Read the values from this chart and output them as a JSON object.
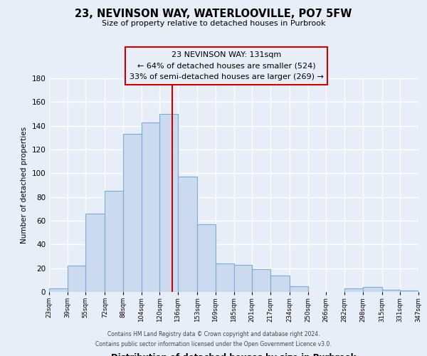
{
  "title": "23, NEVINSON WAY, WATERLOOVILLE, PO7 5FW",
  "subtitle": "Size of property relative to detached houses in Purbrook",
  "xlabel": "Distribution of detached houses by size in Purbrook",
  "ylabel": "Number of detached properties",
  "bin_edges": [
    23,
    39,
    55,
    72,
    88,
    104,
    120,
    136,
    153,
    169,
    185,
    201,
    217,
    234,
    250,
    266,
    282,
    298,
    315,
    331,
    347
  ],
  "bar_heights": [
    3,
    22,
    66,
    85,
    133,
    143,
    150,
    97,
    57,
    24,
    23,
    19,
    14,
    5,
    0,
    0,
    3,
    4,
    2,
    1
  ],
  "bar_color": "#ccdaf0",
  "bar_edge_color": "#7aadd4",
  "property_value": 131,
  "vline_color": "#cc0000",
  "annotation_box_edge_color": "#cc0000",
  "annotation_line1": "23 NEVINSON WAY: 131sqm",
  "annotation_line2": "← 64% of detached houses are smaller (524)",
  "annotation_line3": "33% of semi-detached houses are larger (269) →",
  "ylim": [
    0,
    180
  ],
  "yticks": [
    0,
    20,
    40,
    60,
    80,
    100,
    120,
    140,
    160,
    180
  ],
  "tick_labels": [
    "23sqm",
    "39sqm",
    "55sqm",
    "72sqm",
    "88sqm",
    "104sqm",
    "120sqm",
    "136sqm",
    "153sqm",
    "169sqm",
    "185sqm",
    "201sqm",
    "217sqm",
    "234sqm",
    "250sqm",
    "266sqm",
    "282sqm",
    "298sqm",
    "315sqm",
    "331sqm",
    "347sqm"
  ],
  "footer_line1": "Contains HM Land Registry data © Crown copyright and database right 2024.",
  "footer_line2": "Contains public sector information licensed under the Open Government Licence v3.0.",
  "background_color": "#e8eef8",
  "grid_color": "#ffffff"
}
